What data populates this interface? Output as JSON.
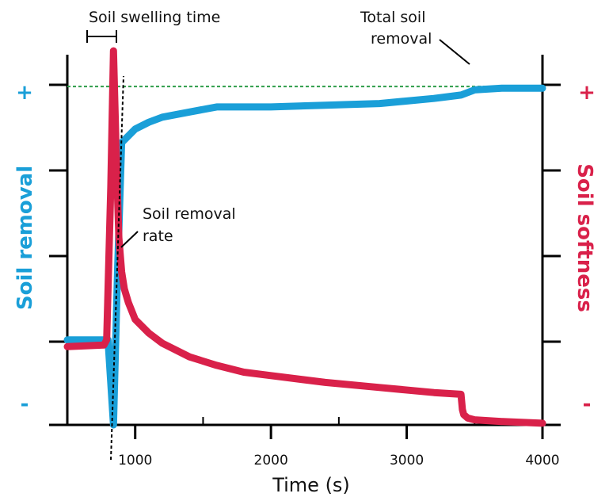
{
  "chart_data": {
    "type": "line",
    "xlabel": "Time (s)",
    "ylabel_left": "Soil removal",
    "ylabel_right": "Soil softness",
    "xlim": [
      500,
      4000
    ],
    "ylim": [
      0,
      100
    ],
    "x_ticks": [
      1000,
      2000,
      3000,
      4000
    ],
    "x_tick_labels": [
      "1000",
      "2000",
      "3000",
      "4000"
    ],
    "left_sign_top": "+",
    "left_sign_bottom": "-",
    "right_sign_top": "+",
    "right_sign_bottom": "-",
    "colors": {
      "removal": "#1a9fd8",
      "softness": "#d9214a",
      "total_line": "#2e9d4a",
      "axis": "#000000"
    },
    "series": [
      {
        "key": "removal",
        "x": [
          500,
          800,
          840,
          870,
          900,
          950,
          1000,
          1100,
          1200,
          1400,
          1600,
          1800,
          2000,
          2400,
          2800,
          3200,
          3400,
          3500,
          3700,
          4000
        ],
        "y": [
          25,
          25,
          0,
          45,
          83,
          85,
          87,
          89,
          90.5,
          92,
          93.5,
          93.5,
          93.5,
          94,
          94.5,
          96,
          97,
          98.5,
          99,
          99
        ]
      },
      {
        "key": "softness",
        "x": [
          500,
          770,
          790,
          820,
          840,
          860,
          880,
          900,
          920,
          950,
          1000,
          1100,
          1200,
          1400,
          1600,
          1800,
          2000,
          2400,
          2800,
          3200,
          3400,
          3410,
          3420,
          3450,
          3500,
          3700,
          4000
        ],
        "y": [
          23,
          23.5,
          25,
          70,
          110,
          80,
          55,
          45,
          40,
          36,
          31,
          27,
          24,
          20,
          17.5,
          15.5,
          14.5,
          12.5,
          11,
          9.5,
          9,
          4.5,
          3,
          2,
          1.5,
          1,
          0.5
        ]
      }
    ],
    "total_soil_removal_level": 99.5,
    "annotations": {
      "swelling_time": "Soil swelling time",
      "total_removal_line1": "Total soil",
      "total_removal_line2": "removal",
      "rate_line1": "Soil removal",
      "rate_line2": "rate"
    }
  }
}
